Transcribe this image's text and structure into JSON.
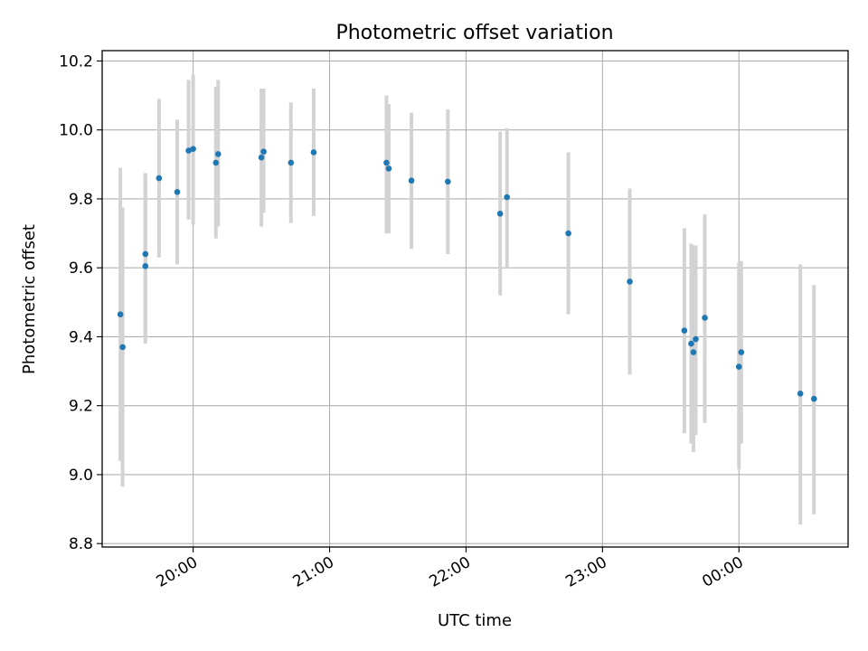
{
  "chart_data": {
    "type": "scatter",
    "title": "Photometric offset variation",
    "xlabel": "UTC time",
    "ylabel": "Photometric offset",
    "x_unit": "time",
    "xlim": [
      "19:20",
      "00:48"
    ],
    "ylim": [
      8.79,
      10.23
    ],
    "x_ticks": [
      "20:00",
      "21:00",
      "22:00",
      "23:00",
      "00:00"
    ],
    "y_ticks": [
      "8.8",
      "9.0",
      "9.2",
      "9.4",
      "9.6",
      "9.8",
      "10.0",
      "10.2"
    ],
    "grid": true,
    "legend": "none",
    "colors": {
      "point": "#1f77b4",
      "errorbar": "#d3d3d3",
      "grid": "#b0b0b0"
    },
    "points": [
      {
        "time": "19:28",
        "y": 9.465,
        "ymin": 9.04,
        "ymax": 9.89
      },
      {
        "time": "19:29",
        "y": 9.37,
        "ymin": 8.965,
        "ymax": 9.775
      },
      {
        "time": "19:39",
        "y": 9.605,
        "ymin": 9.38,
        "ymax": 9.875
      },
      {
        "time": "19:39",
        "y": 9.64,
        "ymin": 9.4,
        "ymax": 9.87
      },
      {
        "time": "19:45",
        "y": 9.86,
        "ymin": 9.63,
        "ymax": 10.09
      },
      {
        "time": "19:53",
        "y": 9.82,
        "ymin": 9.61,
        "ymax": 10.03
      },
      {
        "time": "19:58",
        "y": 9.94,
        "ymin": 9.74,
        "ymax": 10.145
      },
      {
        "time": "20:00",
        "y": 9.945,
        "ymin": 9.725,
        "ymax": 10.16
      },
      {
        "time": "20:10",
        "y": 9.905,
        "ymin": 9.685,
        "ymax": 10.125
      },
      {
        "time": "20:11",
        "y": 9.93,
        "ymin": 9.72,
        "ymax": 10.145
      },
      {
        "time": "20:30",
        "y": 9.92,
        "ymin": 9.72,
        "ymax": 10.12
      },
      {
        "time": "20:31",
        "y": 9.937,
        "ymin": 9.76,
        "ymax": 10.12
      },
      {
        "time": "20:43",
        "y": 9.905,
        "ymin": 9.73,
        "ymax": 10.08
      },
      {
        "time": "20:53",
        "y": 9.935,
        "ymin": 9.75,
        "ymax": 10.12
      },
      {
        "time": "21:25",
        "y": 9.905,
        "ymin": 9.7,
        "ymax": 10.1
      },
      {
        "time": "21:26",
        "y": 9.888,
        "ymin": 9.7,
        "ymax": 10.075
      },
      {
        "time": "21:36",
        "y": 9.853,
        "ymin": 9.655,
        "ymax": 10.05
      },
      {
        "time": "21:52",
        "y": 9.85,
        "ymin": 9.64,
        "ymax": 10.06
      },
      {
        "time": "22:15",
        "y": 9.757,
        "ymin": 9.52,
        "ymax": 9.995
      },
      {
        "time": "22:18",
        "y": 9.805,
        "ymin": 9.6,
        "ymax": 10.005
      },
      {
        "time": "22:45",
        "y": 9.7,
        "ymin": 9.465,
        "ymax": 9.935
      },
      {
        "time": "23:12",
        "y": 9.56,
        "ymin": 9.29,
        "ymax": 9.83
      },
      {
        "time": "23:36",
        "y": 9.418,
        "ymin": 9.12,
        "ymax": 9.715
      },
      {
        "time": "23:39",
        "y": 9.38,
        "ymin": 9.09,
        "ymax": 9.67
      },
      {
        "time": "23:40",
        "y": 9.355,
        "ymin": 9.065,
        "ymax": 9.665
      },
      {
        "time": "23:41",
        "y": 9.393,
        "ymin": 9.115,
        "ymax": 9.665
      },
      {
        "time": "23:45",
        "y": 9.455,
        "ymin": 9.15,
        "ymax": 9.755
      },
      {
        "time": "00:00",
        "y": 9.313,
        "ymin": 9.015,
        "ymax": 9.615
      },
      {
        "time": "00:01",
        "y": 9.355,
        "ymin": 9.09,
        "ymax": 9.62
      },
      {
        "time": "00:27",
        "y": 9.235,
        "ymin": 8.855,
        "ymax": 9.61
      },
      {
        "time": "00:33",
        "y": 9.22,
        "ymin": 8.885,
        "ymax": 9.55
      }
    ]
  }
}
